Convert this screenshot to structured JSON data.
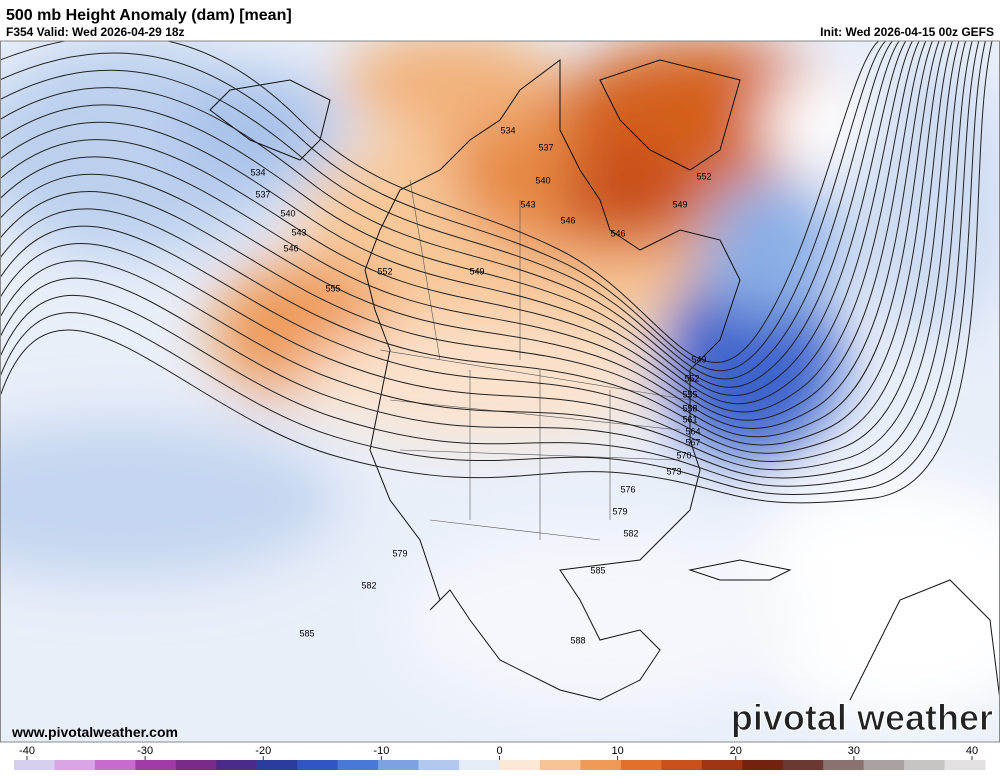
{
  "header": {
    "title": "500 mb Height Anomaly (dam) [mean]",
    "valid": "F354 Valid: Wed 2026-04-29 18z",
    "init": "Init: Wed 2026-04-15 00z GEFS"
  },
  "contour_labels": [
    "534",
    "537",
    "540",
    "543",
    "546",
    "552",
    "555",
    "549",
    "534",
    "537",
    "540",
    "543",
    "546",
    "546",
    "552",
    "549",
    "549",
    "552",
    "555",
    "558",
    "561",
    "564",
    "567",
    "570",
    "573",
    "576",
    "579",
    "582",
    "585",
    "579",
    "582",
    "585",
    "588"
  ],
  "footer": {
    "website": "www.pivotalweather.com",
    "logo": "pivotal weather"
  },
  "colorbar": {
    "ticks": [
      -40,
      -30,
      -20,
      -10,
      0,
      10,
      20,
      30,
      40
    ],
    "colors": [
      "#d6d0ee",
      "#d8a6e6",
      "#c96ad0",
      "#a23aa8",
      "#7a2a8a",
      "#4a2a8a",
      "#2a3c9e",
      "#2f56c4",
      "#4a78d8",
      "#7da2e4",
      "#b2c8ee",
      "#e4ecf8",
      "#fbe8d6",
      "#f6c494",
      "#ef9a56",
      "#e2702a",
      "#c8501a",
      "#9e3412",
      "#742210",
      "#6a3a32",
      "#8a7270",
      "#aaa2a0",
      "#c8c4c4",
      "#e2e0e0"
    ]
  }
}
